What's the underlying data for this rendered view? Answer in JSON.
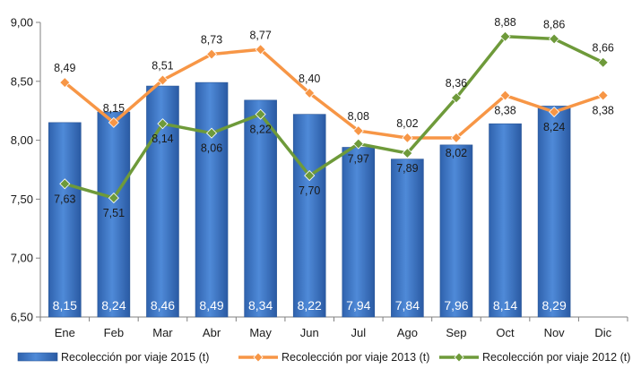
{
  "chart_data": {
    "type": "bar",
    "categories": [
      "Ene",
      "Feb",
      "Mar",
      "Abr",
      "May",
      "Jun",
      "Jul",
      "Ago",
      "Sep",
      "Oct",
      "Nov",
      "Dic"
    ],
    "ylim": [
      6.5,
      9.0
    ],
    "yticks": [
      "6,50",
      "7,00",
      "7,50",
      "8,00",
      "8,50",
      "9,00"
    ],
    "grid": false,
    "legend_position": "bottom",
    "series": [
      {
        "name": "Recolección por viaje 2015 (t)",
        "type": "bar",
        "color": "#3d78c8",
        "values": [
          8.15,
          8.24,
          8.46,
          8.49,
          8.34,
          8.22,
          7.94,
          7.84,
          7.96,
          8.14,
          8.29,
          null
        ],
        "labels": [
          "8,15",
          "8,24",
          "8,46",
          "8,49",
          "8,34",
          "8,22",
          "7,94",
          "7,84",
          "7,96",
          "8,14",
          "8,29",
          ""
        ]
      },
      {
        "name": "Recolección por viaje 2013 (t)",
        "type": "line",
        "color": "#f79646",
        "values": [
          8.49,
          8.15,
          8.51,
          8.73,
          8.77,
          8.4,
          8.08,
          8.02,
          8.02,
          8.38,
          8.24,
          8.38
        ],
        "labels": [
          "8,49",
          "8,15",
          "8,51",
          "8,73",
          "8,77",
          "8,40",
          "8,08",
          "8,02",
          "",
          "8,38",
          "8,24",
          "8,38"
        ]
      },
      {
        "name": "Recolección por viaje 2012 (t)",
        "type": "line",
        "color": "#6e9a3a",
        "values": [
          7.63,
          7.51,
          8.14,
          8.06,
          8.22,
          7.7,
          7.97,
          7.89,
          8.36,
          8.88,
          8.86,
          8.66
        ],
        "labels": [
          "7,63",
          "7,51",
          "8,14",
          "8,06",
          "8,22",
          "7,70",
          "7,97",
          "7,89",
          "8,36",
          "8,88",
          "8,86",
          "8,66"
        ]
      }
    ],
    "extra_labels": [
      {
        "category_index": 8,
        "text": "8,02"
      }
    ]
  }
}
